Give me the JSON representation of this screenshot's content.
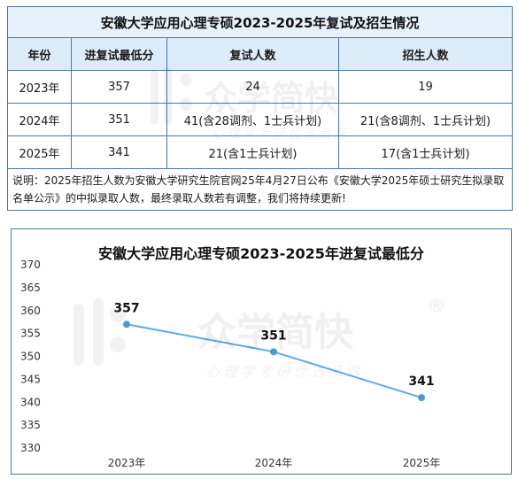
{
  "table": {
    "title": "安徽大学应用心理专硕2023-2025年复试及招生情况",
    "headers": [
      "年份",
      "进复试最低分",
      "复试人数",
      "招生人数"
    ],
    "rows": [
      [
        "2023年",
        "357",
        "24",
        "19"
      ],
      [
        "2024年",
        "351",
        "41(含28调剂、1士兵计划)",
        "21(含8调剂、1士兵计划)"
      ],
      [
        "2025年",
        "341",
        "21(含1士兵计划)",
        "17(含1士兵计划)"
      ]
    ],
    "note": "说明：2025年招生人数为安徽大学研究生院官网25年4月27日公布《安徽大学2025年硕士研究生拟录取名单公示》的中拟录取人数，最终录取人数若有调整，我们将持续更新!"
  },
  "watermark": {
    "brand": "众学简快",
    "slogan": "心 理 学 考 研 优 选 品 牌",
    "reg_mark": "®"
  },
  "chart_data": {
    "type": "line",
    "title": "安徽大学应用心理专硕2023-2025年进复试最低分",
    "categories": [
      "2023年",
      "2024年",
      "2025年"
    ],
    "series": [
      {
        "values": [
          357,
          351,
          341
        ]
      }
    ],
    "data_labels": [
      "357",
      "351",
      "341"
    ],
    "yticks": [
      "370",
      "365",
      "360",
      "355",
      "350",
      "345",
      "340",
      "335",
      "330"
    ],
    "ylim": [
      330,
      370
    ],
    "grid": false,
    "line_color": "#5aace6",
    "point_color": "#4a9ad8"
  }
}
